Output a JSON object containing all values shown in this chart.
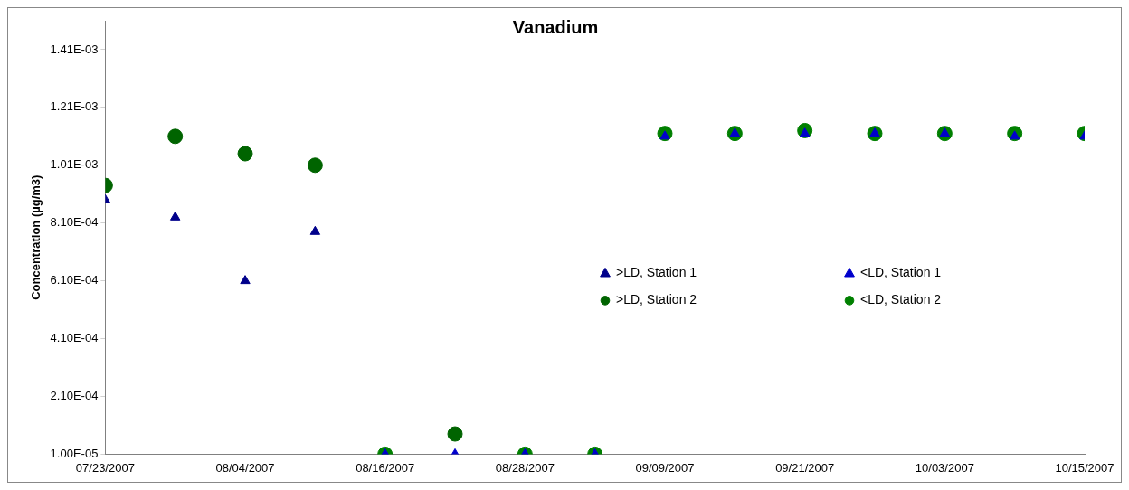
{
  "chart_data": {
    "type": "scatter",
    "title": "Vanadium",
    "ylabel": "Concentration (µg/m3)",
    "x": [
      "2007-07-23",
      "2007-07-29",
      "2007-08-04",
      "2007-08-10",
      "2007-08-16",
      "2007-08-22",
      "2007-08-28",
      "2007-09-03",
      "2007-09-09",
      "2007-09-15",
      "2007-09-21",
      "2007-09-27",
      "2007-10-03",
      "2007-10-09",
      "2007-10-15"
    ],
    "series": [
      {
        "name": ">LD, Station 1",
        "color": "#00008b",
        "marker": "triangle",
        "values": [
          0.00089,
          0.00083,
          0.00061,
          0.00078,
          null,
          null,
          null,
          null,
          null,
          null,
          null,
          null,
          null,
          null,
          null
        ]
      },
      {
        "name": "<LD, Station 1",
        "color": "#0000cc",
        "marker": "triangle",
        "values": [
          null,
          null,
          null,
          null,
          1e-05,
          1e-05,
          1e-05,
          1e-05,
          0.00111,
          0.00112,
          0.00112,
          0.00112,
          0.00112,
          0.00111,
          0.00111
        ]
      },
      {
        "name": ">LD, Station 2",
        "color": "#006400",
        "marker": "circle",
        "values": [
          0.00094,
          0.00111,
          0.00105,
          0.00101,
          null,
          8e-05,
          null,
          null,
          null,
          null,
          null,
          null,
          null,
          null,
          null
        ]
      },
      {
        "name": "<LD, Station 2",
        "color": "#008000",
        "marker": "circle",
        "values": [
          null,
          null,
          null,
          null,
          1e-05,
          null,
          1e-05,
          1e-05,
          0.00112,
          0.00112,
          0.00113,
          0.00112,
          0.00112,
          0.00112,
          0.00112
        ]
      }
    ],
    "xlim": [
      "2007-07-23",
      "2007-10-15"
    ],
    "xticks": [
      {
        "value": "2007-07-23",
        "label": "07/23/2007"
      },
      {
        "value": "2007-08-04",
        "label": "08/04/2007"
      },
      {
        "value": "2007-08-16",
        "label": "08/16/2007"
      },
      {
        "value": "2007-08-28",
        "label": "08/28/2007"
      },
      {
        "value": "2007-09-09",
        "label": "09/09/2007"
      },
      {
        "value": "2007-09-21",
        "label": "09/21/2007"
      },
      {
        "value": "2007-10-03",
        "label": "10/03/2007"
      },
      {
        "value": "2007-10-15",
        "label": "10/15/2007"
      }
    ],
    "ylim": [
      1e-05,
      0.00151
    ],
    "yticks": [
      {
        "value": 1e-05,
        "label": "1.00E-05"
      },
      {
        "value": 0.00021,
        "label": "2.10E-04"
      },
      {
        "value": 0.00041,
        "label": "4.10E-04"
      },
      {
        "value": 0.00061,
        "label": "6.10E-04"
      },
      {
        "value": 0.00081,
        "label": "8.10E-04"
      },
      {
        "value": 0.00101,
        "label": "1.01E-03"
      },
      {
        "value": 0.00121,
        "label": "1.21E-03"
      },
      {
        "value": 0.00141,
        "label": "1.41E-03"
      }
    ],
    "grid": false,
    "legend": "bottom right"
  }
}
